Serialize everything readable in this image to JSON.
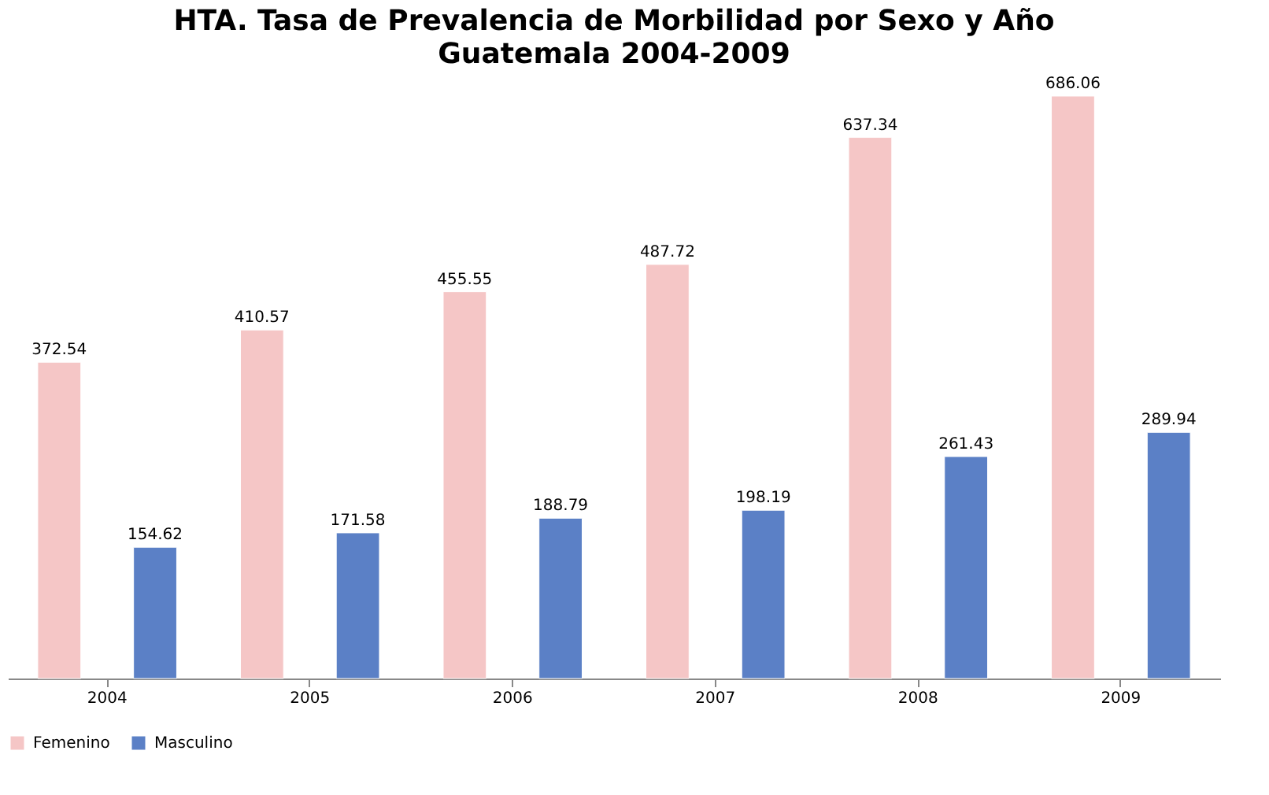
{
  "chart_data": {
    "type": "bar",
    "title": "HTA. Tasa de Prevalencia de Morbilidad por Sexo y Año",
    "subtitle": "Guatemala 2004-2009",
    "categories": [
      "2004",
      "2005",
      "2006",
      "2007",
      "2008",
      "2009"
    ],
    "series": [
      {
        "name": "Femenino",
        "color": "#f5c6c6",
        "values": [
          372.54,
          410.57,
          455.55,
          487.72,
          637.34,
          686.06
        ]
      },
      {
        "name": "Masculino",
        "color": "#5b80c6",
        "values": [
          154.62,
          171.58,
          188.79,
          198.19,
          261.43,
          289.94
        ]
      }
    ],
    "data_labels": true,
    "legend": "bottom",
    "grid": false
  }
}
